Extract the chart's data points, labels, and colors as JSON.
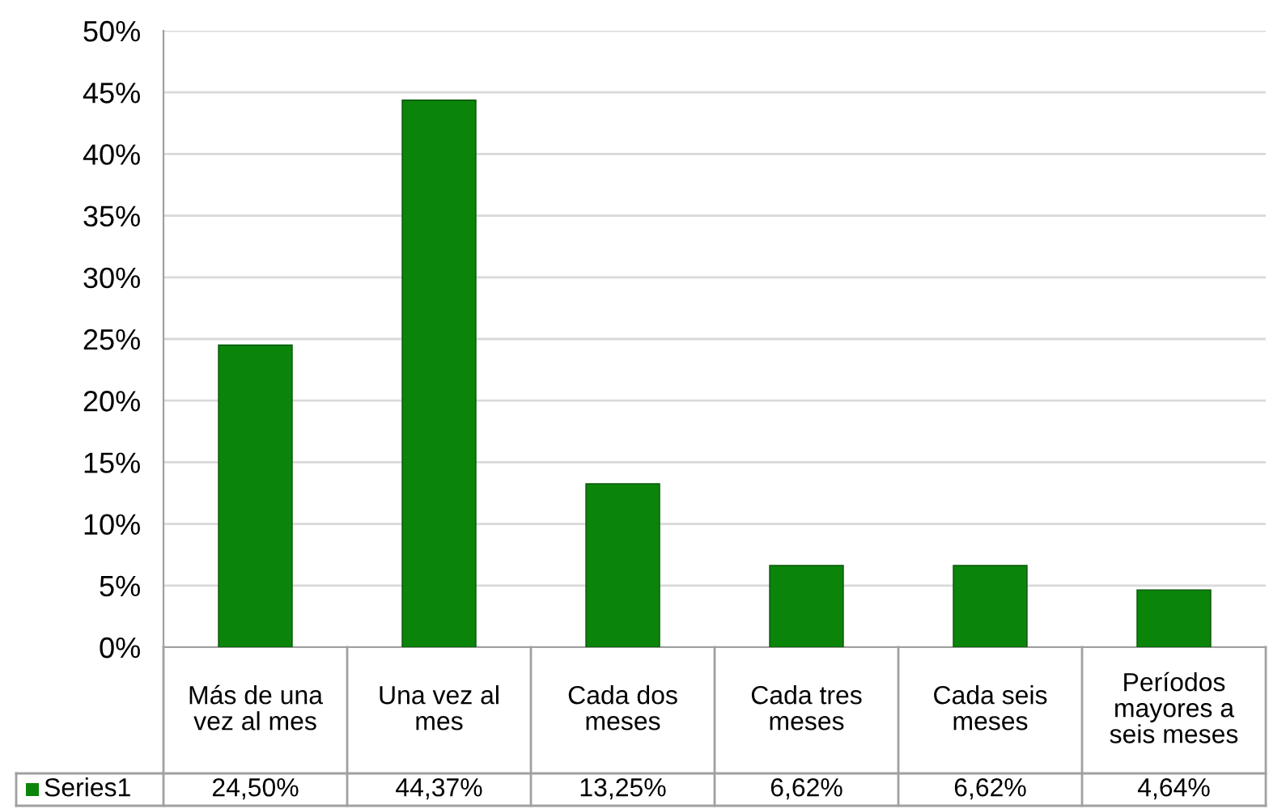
{
  "chart_data": {
    "type": "bar",
    "categories": [
      "Más de una vez al mes",
      "Una vez al mes",
      "Cada dos meses",
      "Cada tres meses",
      "Cada seis meses",
      "Períodos mayores a seis meses"
    ],
    "series": [
      {
        "name": "Series1",
        "color": "#0a850a",
        "values": [
          24.5,
          44.37,
          13.25,
          6.62,
          6.62,
          4.64
        ],
        "value_labels": [
          "24,50%",
          "44,37%",
          "13,25%",
          "6,62%",
          "6,62%",
          "4,64%"
        ]
      }
    ],
    "ylim": [
      0,
      50
    ],
    "yticks": [
      {
        "value": 0,
        "label": "0%"
      },
      {
        "value": 5,
        "label": "5%"
      },
      {
        "value": 10,
        "label": "10%"
      },
      {
        "value": 15,
        "label": "15%"
      },
      {
        "value": 20,
        "label": "20%"
      },
      {
        "value": 25,
        "label": "25%"
      },
      {
        "value": 30,
        "label": "30%"
      },
      {
        "value": 35,
        "label": "35%"
      },
      {
        "value": 40,
        "label": "40%"
      },
      {
        "value": 45,
        "label": "45%"
      },
      {
        "value": 50,
        "label": "50%"
      }
    ],
    "grid": "y",
    "legend": "bottom"
  }
}
